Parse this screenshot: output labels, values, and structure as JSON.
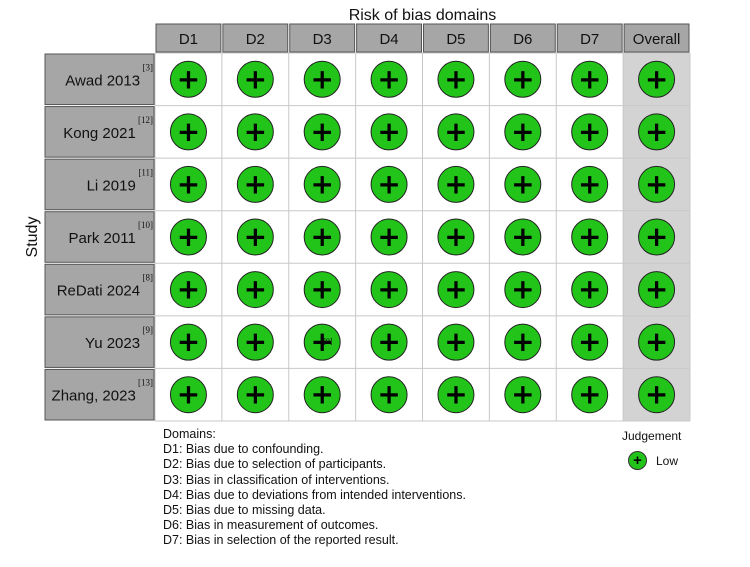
{
  "chart_data": {
    "type": "table",
    "title": "Risk of bias domains",
    "ylabel": "Study",
    "columns": [
      "D1",
      "D2",
      "D3",
      "D4",
      "D5",
      "D6",
      "D7",
      "Overall"
    ],
    "rows": [
      {
        "study": "Awad 2013",
        "ref": "[3]",
        "judgements": [
          "+",
          "+",
          "+",
          "+",
          "+",
          "+",
          "+",
          "+"
        ]
      },
      {
        "study": "Kong 2021",
        "ref": "[12]",
        "judgements": [
          "+",
          "+",
          "+",
          "+",
          "+",
          "+",
          "+",
          "+"
        ]
      },
      {
        "study": "Li 2019",
        "ref": "[11]",
        "judgements": [
          "+",
          "+",
          "+",
          "+",
          "+",
          "+",
          "+",
          "+"
        ]
      },
      {
        "study": "Park 2011",
        "ref": "[10]",
        "judgements": [
          "+",
          "+",
          "+",
          "+",
          "+",
          "+",
          "+",
          "+"
        ]
      },
      {
        "study": "ReDati 2024",
        "ref": "[8]",
        "judgements": [
          "+",
          "+",
          "+",
          "+",
          "+",
          "+",
          "+",
          "+"
        ]
      },
      {
        "study": "Yu 2023",
        "ref": "[9]",
        "judgements": [
          "+",
          "+",
          "+",
          "+",
          "+",
          "+",
          "+",
          "+"
        ]
      },
      {
        "study": "Zhang, 2023",
        "ref": "[13]",
        "judgements": [
          "+",
          "+",
          "+",
          "+",
          "+",
          "+",
          "+",
          "+"
        ]
      }
    ],
    "cell_annotations": [
      {
        "row": 5,
        "col": 2,
        "text": "[9]"
      }
    ]
  },
  "legend": {
    "domains_title": "Domains:",
    "domains": [
      "D1: Bias due to confounding.",
      "D2: Bias due to selection of participants.",
      "D3: Bias in classification of interventions.",
      "D4: Bias due to deviations from intended interventions.",
      "D5: Bias due to missing data.",
      "D6: Bias in measurement of outcomes.",
      "D7: Bias in selection of the reported result."
    ],
    "judgement_title": "Judgement",
    "judgement_items": [
      {
        "symbol": "+",
        "label": "Low"
      }
    ]
  },
  "colors": {
    "low": "#22c41a",
    "header_bg": "#a6a6a6",
    "overall_bg": "#d3d3d3",
    "grid": "#c8c8c8"
  }
}
